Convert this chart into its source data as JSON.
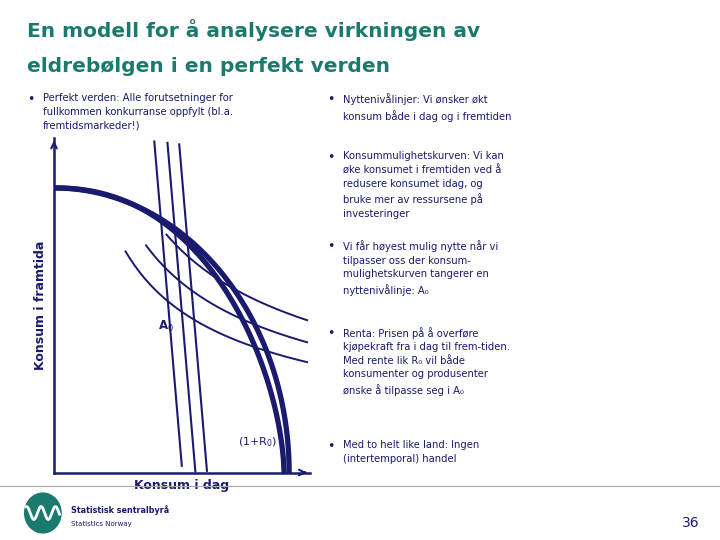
{
  "title_line1": "En modell for å analysere virkningen av",
  "title_line2": "eldrebølgen i en perfekt verden",
  "title_color": "#1a7a6e",
  "dark_blue": "#1a1a6e",
  "bullet_color": "#1a7a6e",
  "xlabel": "Konsum i dag",
  "ylabel": "Konsum i framtida",
  "bullet1_left": "Perfekt verden: Alle forutsetninger for\nfullkommen konkurranse oppfylt (bl.a.\nfremtidsmarkeder!)",
  "bullet1_right": "Nyttenivålinjer: Vi ønsker økt\nkonsum både i dag og i fremtiden",
  "bullet2_right": "Konsummulighetskurven: Vi kan\nøke konsumet i fremtiden ved å\nredusere konsumet idag, og\nbruke mer av ressursene på\ninvesteringer",
  "bullet3_right": "Vi får høyest mulig nytte når vi\ntilpasser oss der konsum-\nmulighetskurven tangerer en\nnyttenivålinje: A₀",
  "bullet4_right": "Renta: Prisen på å overføre\nkjøpekraft fra i dag til frem-tiden.\nMed rente lik R₀ vil både\nkonsumenter og produsenter\nønske å tilpasse seg i A₀",
  "bullet5_right": "Med to helt like land: Ingen\n(intertemporal) handel",
  "page_number": "36",
  "logo_text": "Statistisk sentralbyrå\nStatistics Norway"
}
